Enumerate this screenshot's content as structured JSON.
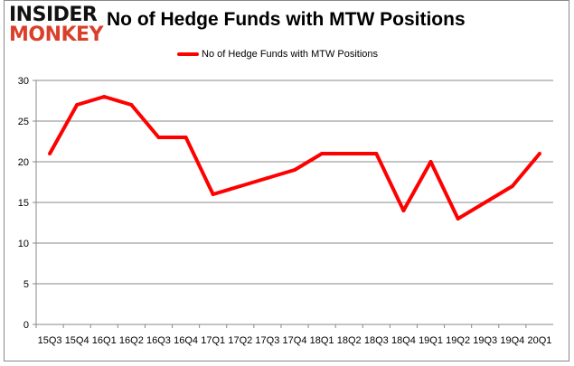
{
  "logo": {
    "line1": "INSIDER",
    "line2": "MONKEY"
  },
  "chart_data": {
    "type": "line",
    "title": "No of Hedge Funds with MTW Positions",
    "xlabel": "",
    "ylabel": "",
    "categories": [
      "15Q3",
      "15Q4",
      "16Q1",
      "16Q2",
      "16Q3",
      "16Q4",
      "17Q1",
      "17Q2",
      "17Q3",
      "17Q4",
      "18Q1",
      "18Q2",
      "18Q3",
      "18Q4",
      "19Q1",
      "19Q2",
      "19Q3",
      "19Q4",
      "20Q1"
    ],
    "series": [
      {
        "name": "No of Hedge Funds with MTW Positions",
        "color": "#ff0000",
        "values": [
          21,
          27,
          28,
          27,
          23,
          23,
          16,
          17,
          18,
          19,
          21,
          21,
          21,
          14,
          20,
          13,
          15,
          17,
          21
        ]
      }
    ],
    "ylim": [
      0,
      30
    ],
    "yticks": [
      0,
      5,
      10,
      15,
      20,
      25,
      30
    ],
    "grid": true,
    "legend": "top-center"
  }
}
